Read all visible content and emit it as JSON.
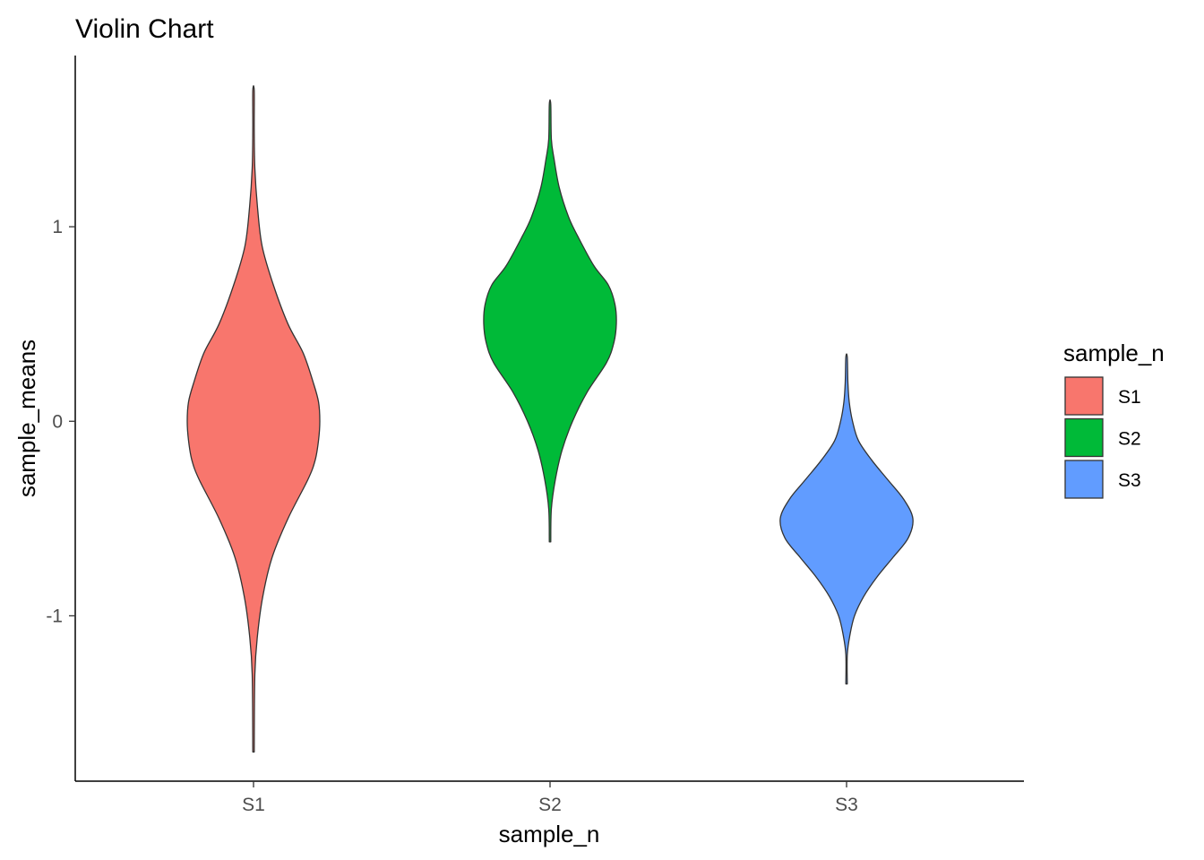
{
  "chart_data": {
    "type": "violin",
    "title": "Violin Chart",
    "xlabel": "sample_n",
    "ylabel": "sample_means",
    "categories": [
      "S1",
      "S2",
      "S3"
    ],
    "ylim": [
      -1.85,
      1.88
    ],
    "yticks": [
      -1,
      0,
      1
    ],
    "ytick_labels": [
      "-1",
      "0",
      "1"
    ],
    "grid": false,
    "legend": {
      "title": "sample_n",
      "placement": "right",
      "entries": [
        "S1",
        "S2",
        "S3"
      ]
    },
    "series": [
      {
        "name": "S1",
        "color": "#F8766D",
        "min": -1.7,
        "max": 1.7,
        "density_profile": [
          [
            -1.7,
            0.0
          ],
          [
            -1.3,
            0.02
          ],
          [
            -1.1,
            0.06
          ],
          [
            -0.9,
            0.14
          ],
          [
            -0.7,
            0.28
          ],
          [
            -0.5,
            0.52
          ],
          [
            -0.3,
            0.82
          ],
          [
            -0.2,
            0.93
          ],
          [
            -0.1,
            0.98
          ],
          [
            0.0,
            1.0
          ],
          [
            0.1,
            0.98
          ],
          [
            0.2,
            0.9
          ],
          [
            0.35,
            0.75
          ],
          [
            0.5,
            0.52
          ],
          [
            0.7,
            0.3
          ],
          [
            0.9,
            0.13
          ],
          [
            1.1,
            0.06
          ],
          [
            1.3,
            0.02
          ],
          [
            1.5,
            0.01
          ],
          [
            1.7,
            0.0
          ]
        ]
      },
      {
        "name": "S2",
        "color": "#00BA38",
        "min": -0.62,
        "max": 1.63,
        "density_profile": [
          [
            -0.62,
            0.0
          ],
          [
            -0.45,
            0.02
          ],
          [
            -0.3,
            0.08
          ],
          [
            -0.15,
            0.18
          ],
          [
            0.0,
            0.34
          ],
          [
            0.15,
            0.56
          ],
          [
            0.3,
            0.85
          ],
          [
            0.4,
            0.96
          ],
          [
            0.5,
            1.0
          ],
          [
            0.6,
            0.98
          ],
          [
            0.7,
            0.88
          ],
          [
            0.8,
            0.66
          ],
          [
            0.95,
            0.42
          ],
          [
            1.05,
            0.28
          ],
          [
            1.2,
            0.14
          ],
          [
            1.35,
            0.06
          ],
          [
            1.45,
            0.02
          ],
          [
            1.63,
            0.0
          ]
        ]
      },
      {
        "name": "S3",
        "color": "#619CFF",
        "min": -1.35,
        "max": 0.33,
        "density_profile": [
          [
            -1.35,
            0.0
          ],
          [
            -1.2,
            0.01
          ],
          [
            -1.1,
            0.05
          ],
          [
            -1.0,
            0.12
          ],
          [
            -0.9,
            0.26
          ],
          [
            -0.8,
            0.46
          ],
          [
            -0.7,
            0.7
          ],
          [
            -0.6,
            0.93
          ],
          [
            -0.5,
            1.0
          ],
          [
            -0.4,
            0.86
          ],
          [
            -0.3,
            0.62
          ],
          [
            -0.2,
            0.38
          ],
          [
            -0.1,
            0.18
          ],
          [
            0.0,
            0.09
          ],
          [
            0.1,
            0.04
          ],
          [
            0.2,
            0.02
          ],
          [
            0.33,
            0.0
          ]
        ]
      }
    ]
  }
}
